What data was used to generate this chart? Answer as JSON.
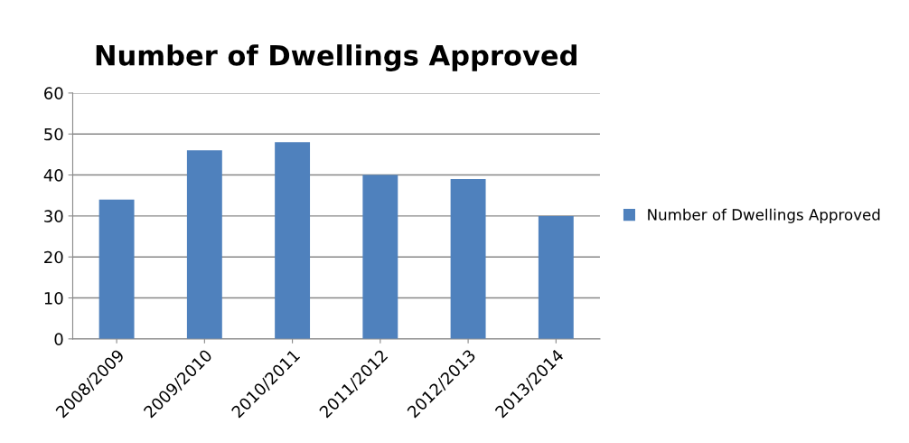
{
  "chart_data": {
    "type": "bar",
    "title": "Number of Dwellings Approved",
    "categories": [
      "2008/2009",
      "2009/2010",
      "2010/2011",
      "2011/2012",
      "2012/2013",
      "2013/2014"
    ],
    "series": [
      {
        "name": "Number of Dwellings Approved",
        "color": "#4f81bd",
        "values": [
          34,
          46,
          48,
          40,
          39,
          30
        ]
      }
    ],
    "ylim": [
      0,
      60
    ],
    "yticks": [
      0,
      10,
      20,
      30,
      40,
      50,
      60
    ],
    "grid": "y",
    "legend": "right"
  }
}
